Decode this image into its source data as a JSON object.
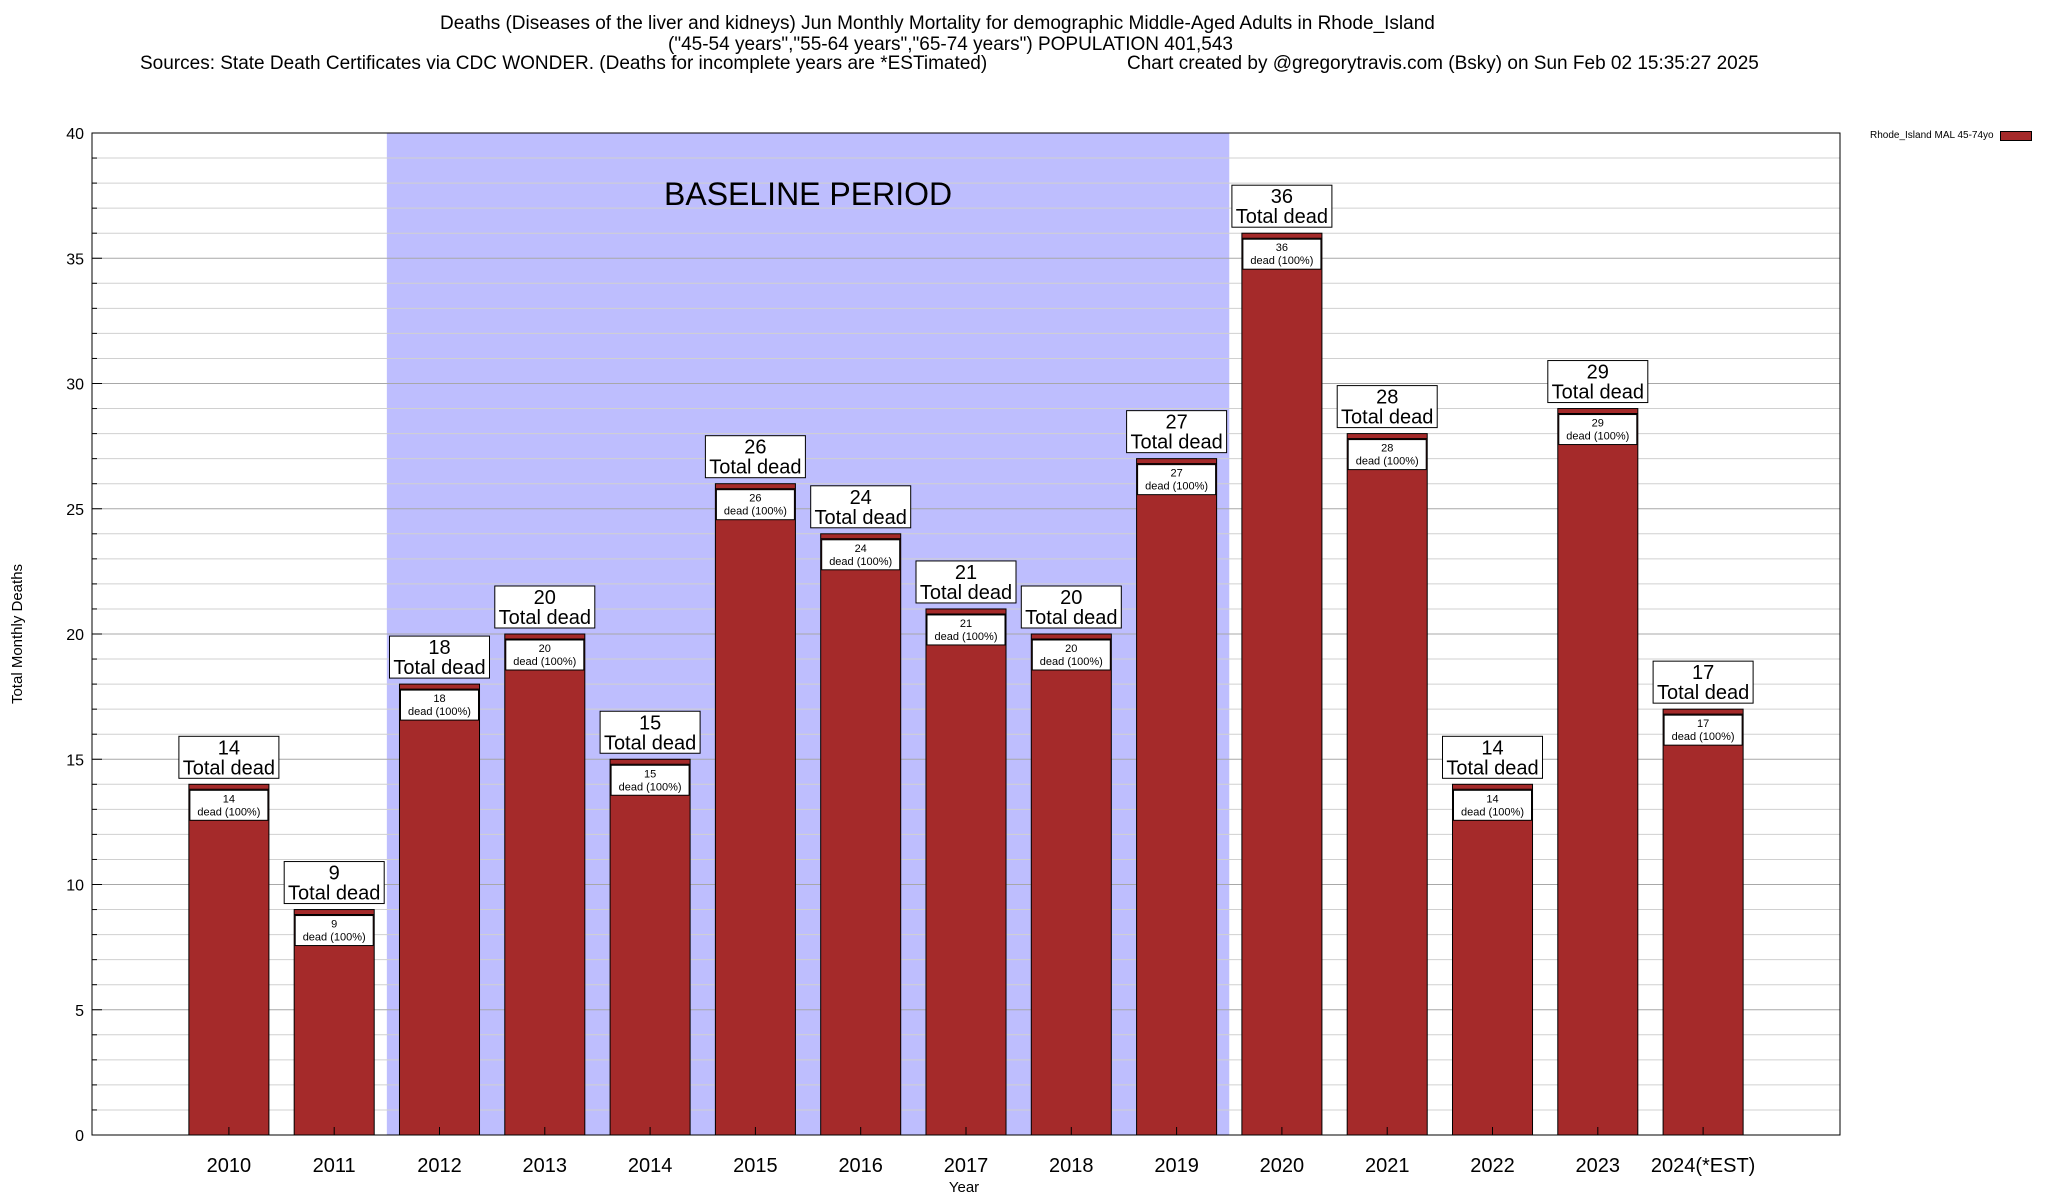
{
  "chart_data": {
    "type": "bar",
    "title_lines": [
      "Deaths (Diseases of the liver and kidneys) Jun Monthly Mortality for demographic Middle-Aged Adults in Rhode_Island",
      "(\"45-54 years\",\"55-64 years\",\"65-74 years\") POPULATION 401,543",
      "Sources: State Death Certificates via CDC WONDER. (Deaths for incomplete years are *ESTimated)"
    ],
    "credit": "Chart created by @gregorytravis.com (Bsky) on Sun Feb 02 15:35:27 2025",
    "xlabel": "Year",
    "ylabel": "Total Monthly Deaths",
    "ylim": [
      0,
      40
    ],
    "y_ticks": [
      0,
      5,
      10,
      15,
      20,
      25,
      30,
      35,
      40
    ],
    "grid": true,
    "legend": {
      "placement": "top-right, outside plot",
      "entries": [
        {
          "name": "Rhode_Island MAL 45-74yo",
          "color": "#a52a2a"
        }
      ]
    },
    "baseline": {
      "label": "BASELINE PERIOD",
      "from": "2012",
      "to": "2019",
      "color": "#bebefe"
    },
    "categories": [
      "2010",
      "2011",
      "2012",
      "2013",
      "2014",
      "2015",
      "2016",
      "2017",
      "2018",
      "2019",
      "2020",
      "2021",
      "2022",
      "2023",
      "2024(*EST)"
    ],
    "series": [
      {
        "name": "Rhode_Island MAL 45-74yo",
        "color": "#a52a2a",
        "values": [
          14,
          9,
          18,
          20,
          15,
          26,
          24,
          21,
          20,
          27,
          36,
          28,
          14,
          29,
          17
        ]
      }
    ],
    "total_label_text": "Total dead",
    "inner_label_text": "dead (100%)"
  }
}
